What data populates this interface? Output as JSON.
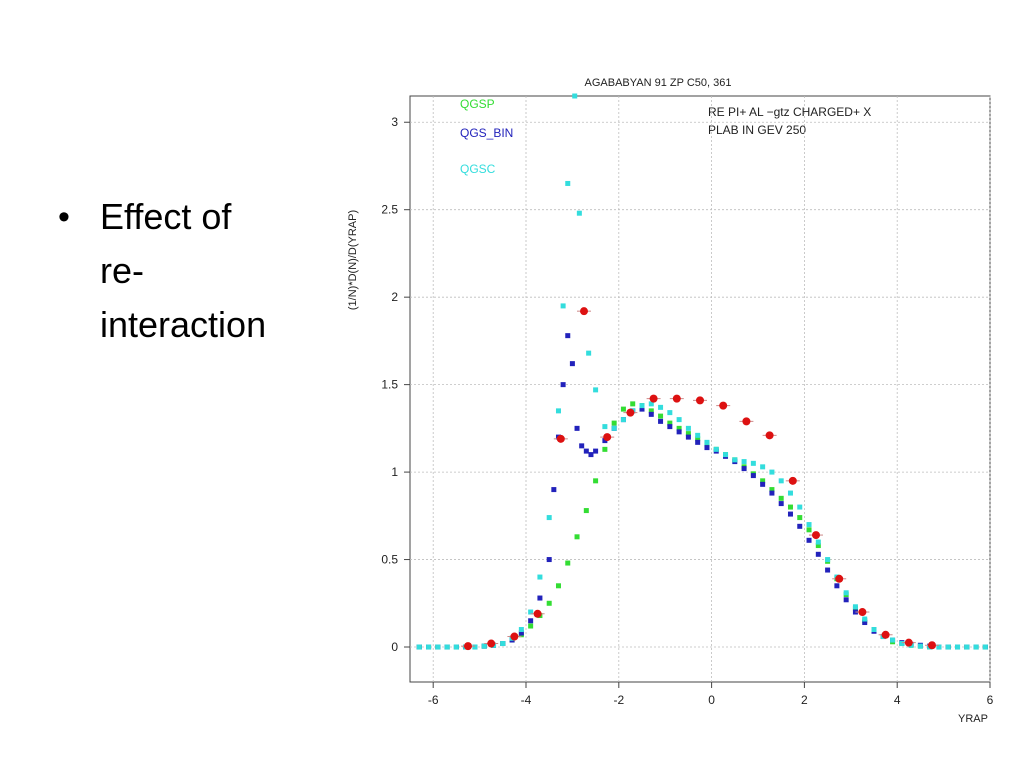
{
  "slide": {
    "bullet_lines": [
      "Effect of",
      "re-",
      "interaction"
    ]
  },
  "chart_data": {
    "type": "scatter",
    "title": "AGABABYAN 91   ZP C50, 361",
    "xlabel": "YRAP",
    "ylabel": "(1/N)*D(N)/D(YRAP)",
    "xlim": [
      -6.5,
      6
    ],
    "ylim": [
      -0.2,
      3.15
    ],
    "x_ticks": [
      "-6",
      "-4",
      "-2",
      "0",
      "2",
      "4",
      "6"
    ],
    "y_ticks": [
      "0",
      "0.5",
      "1",
      "1.5",
      "2",
      "2.5",
      "3"
    ],
    "grid": true,
    "annotations": [
      "RE   PI+ AL −gtz CHARGED+ X",
      "PLAB IN GEV   250"
    ],
    "colors": {
      "QGSP": "#33dd33",
      "QGS_BIN": "#2222bb",
      "QGSC": "#33dddd",
      "data": "#dd1111"
    },
    "series": [
      {
        "name": "QGSP",
        "x": [
          -6.3,
          -6.1,
          -5.9,
          -5.7,
          -5.5,
          -5.3,
          -5.1,
          -4.9,
          -4.7,
          -4.5,
          -4.3,
          -4.1,
          -3.9,
          -3.7,
          -3.5,
          -3.3,
          -3.1,
          -2.9,
          -2.7,
          -2.5,
          -2.3,
          -2.1,
          -1.9,
          -1.7,
          -1.5,
          -1.3,
          -1.1,
          -0.9,
          -0.7,
          -0.5,
          -0.3,
          -0.1,
          0.1,
          0.3,
          0.5,
          0.7,
          0.9,
          1.1,
          1.3,
          1.5,
          1.7,
          1.9,
          2.1,
          2.3,
          2.5,
          2.7,
          2.9,
          3.1,
          3.3,
          3.5,
          3.7,
          3.9,
          4.1,
          4.3,
          4.5,
          4.7,
          4.9,
          5.1,
          5.3,
          5.5,
          5.7,
          5.9
        ],
        "y": [
          0,
          0,
          0,
          0,
          0,
          0,
          0,
          0.005,
          0.01,
          0.02,
          0.04,
          0.07,
          0.12,
          0.18,
          0.25,
          0.35,
          0.48,
          0.63,
          0.78,
          0.95,
          1.13,
          1.28,
          1.36,
          1.39,
          1.38,
          1.35,
          1.32,
          1.28,
          1.25,
          1.22,
          1.19,
          1.16,
          1.13,
          1.1,
          1.07,
          1.03,
          0.99,
          0.95,
          0.9,
          0.85,
          0.8,
          0.74,
          0.67,
          0.58,
          0.49,
          0.39,
          0.3,
          0.22,
          0.15,
          0.1,
          0.06,
          0.03,
          0.02,
          0.01,
          0.005,
          0,
          0,
          0,
          0,
          0,
          0,
          0
        ]
      },
      {
        "name": "QGS_BIN",
        "x": [
          -6.3,
          -6.1,
          -5.9,
          -5.7,
          -5.5,
          -5.3,
          -5.1,
          -4.9,
          -4.7,
          -4.5,
          -4.3,
          -4.1,
          -3.9,
          -3.7,
          -3.5,
          -3.4,
          -3.3,
          -3.2,
          -3.1,
          -3.0,
          -2.9,
          -2.8,
          -2.7,
          -2.6,
          -2.5,
          -2.3,
          -2.1,
          -1.9,
          -1.7,
          -1.5,
          -1.3,
          -1.1,
          -0.9,
          -0.7,
          -0.5,
          -0.3,
          -0.1,
          0.1,
          0.3,
          0.5,
          0.7,
          0.9,
          1.1,
          1.3,
          1.5,
          1.7,
          1.9,
          2.1,
          2.3,
          2.5,
          2.7,
          2.9,
          3.1,
          3.3,
          3.5,
          3.7,
          3.9,
          4.1,
          4.3,
          4.5,
          4.7,
          4.9,
          5.1,
          5.3,
          5.5,
          5.7,
          5.9
        ],
        "y": [
          0,
          0,
          0,
          0,
          0,
          0,
          0,
          0.005,
          0.01,
          0.02,
          0.04,
          0.08,
          0.15,
          0.28,
          0.5,
          0.9,
          1.2,
          1.5,
          1.78,
          1.62,
          1.25,
          1.15,
          1.12,
          1.1,
          1.12,
          1.18,
          1.25,
          1.3,
          1.35,
          1.36,
          1.33,
          1.29,
          1.26,
          1.23,
          1.2,
          1.17,
          1.14,
          1.12,
          1.09,
          1.06,
          1.02,
          0.98,
          0.93,
          0.88,
          0.82,
          0.76,
          0.69,
          0.61,
          0.53,
          0.44,
          0.35,
          0.27,
          0.2,
          0.14,
          0.09,
          0.06,
          0.04,
          0.025,
          0.015,
          0.01,
          0.005,
          0,
          0,
          0,
          0,
          0,
          0
        ]
      },
      {
        "name": "QGSC",
        "x": [
          -6.3,
          -6.1,
          -5.9,
          -5.7,
          -5.5,
          -5.3,
          -5.1,
          -4.9,
          -4.7,
          -4.5,
          -4.3,
          -4.1,
          -3.9,
          -3.7,
          -3.5,
          -3.3,
          -3.2,
          -3.1,
          -2.95,
          -2.85,
          -2.75,
          -2.65,
          -2.5,
          -2.3,
          -2.1,
          -1.9,
          -1.7,
          -1.5,
          -1.3,
          -1.1,
          -0.9,
          -0.7,
          -0.5,
          -0.3,
          -0.1,
          0.1,
          0.3,
          0.5,
          0.7,
          0.9,
          1.1,
          1.3,
          1.5,
          1.7,
          1.9,
          2.1,
          2.3,
          2.5,
          2.7,
          2.9,
          3.1,
          3.3,
          3.5,
          3.7,
          3.9,
          4.1,
          4.3,
          4.5,
          4.7,
          4.9,
          5.1,
          5.3,
          5.5,
          5.7,
          5.9
        ],
        "y": [
          0,
          0,
          0,
          0,
          0,
          0,
          0,
          0.005,
          0.01,
          0.02,
          0.05,
          0.1,
          0.2,
          0.4,
          0.74,
          1.35,
          1.95,
          2.65,
          3.15,
          2.48,
          1.92,
          1.68,
          1.47,
          1.26,
          1.25,
          1.3,
          1.35,
          1.38,
          1.39,
          1.37,
          1.34,
          1.3,
          1.25,
          1.21,
          1.17,
          1.13,
          1.1,
          1.07,
          1.06,
          1.05,
          1.03,
          1.0,
          0.95,
          0.88,
          0.8,
          0.7,
          0.6,
          0.5,
          0.4,
          0.31,
          0.23,
          0.16,
          0.1,
          0.06,
          0.04,
          0.02,
          0.01,
          0.005,
          0,
          0,
          0,
          0,
          0,
          0,
          0
        ]
      },
      {
        "name": "",
        "x": [
          -5.25,
          -4.75,
          -4.25,
          -3.75,
          -3.25,
          -2.75,
          -2.25,
          -1.75,
          -1.25,
          -0.75,
          -0.25,
          0.25,
          0.75,
          1.25,
          1.75,
          2.25,
          2.75,
          3.25,
          3.75,
          4.25,
          4.75
        ],
        "y": [
          0.005,
          0.02,
          0.06,
          0.19,
          1.19,
          1.92,
          1.2,
          1.34,
          1.42,
          1.42,
          1.41,
          1.38,
          1.29,
          1.21,
          0.95,
          0.64,
          0.39,
          0.2,
          0.07,
          0.025,
          0.01
        ]
      }
    ]
  }
}
